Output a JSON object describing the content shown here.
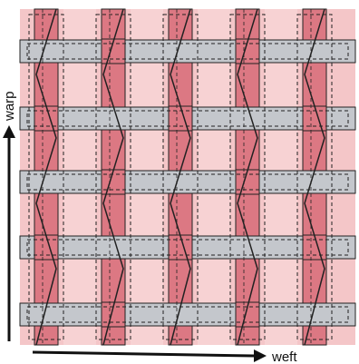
{
  "diagram": {
    "labels": {
      "vertical_axis": "warp",
      "horizontal_axis": "weft"
    },
    "warp_yarn_count": 5,
    "weft_yarn_count": 5,
    "colors": {
      "background_fabric": "#f4c6c8",
      "warp_yarn": "#dc7883",
      "weft_yarn": "#c4c7cc",
      "outline": "#222222",
      "arrow": "#111111"
    }
  }
}
